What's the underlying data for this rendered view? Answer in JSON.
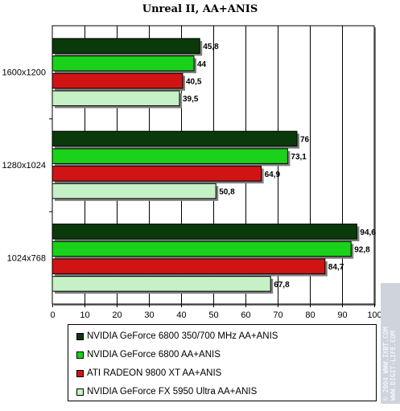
{
  "chart_data": {
    "type": "bar",
    "orientation": "horizontal",
    "title": "Unreal II, AA+ANIS",
    "categories": [
      "1600x1200",
      "1280x1024",
      "1024x768"
    ],
    "series": [
      {
        "name": "NVIDIA GeForce 6800 350/700 MHz AA+ANIS",
        "values": [
          45.8,
          76,
          94.6
        ],
        "labels": [
          "45,8",
          "76",
          "94,6"
        ],
        "color": "#0a3a0a"
      },
      {
        "name": "NVIDIA GeForce 6800 AA+ANIS",
        "values": [
          44,
          73.1,
          92.8
        ],
        "labels": [
          "44",
          "73,1",
          "92,8"
        ],
        "color": "#19d219"
      },
      {
        "name": "ATI RADEON 9800 XT AA+ANIS",
        "values": [
          40.5,
          64.9,
          84.7
        ],
        "labels": [
          "40,5",
          "64,9",
          "84,7"
        ],
        "color": "#d01414"
      },
      {
        "name": "NVIDIA GeForce FX 5950 Ultra AA+ANIS",
        "values": [
          39.5,
          50.8,
          67.8
        ],
        "labels": [
          "39,5",
          "50,8",
          "67,8"
        ],
        "color": "#c6f0c6"
      }
    ],
    "xlim": [
      0,
      100
    ],
    "xticks": [
      "0",
      "10",
      "20",
      "30",
      "40",
      "50",
      "60",
      "70",
      "80",
      "90",
      "100"
    ],
    "grid": true,
    "legend_position": "bottom"
  },
  "watermark": {
    "lines": [
      "© 2004 WWW.IXBT.COM",
      "WWW.DIGIT-LIFE.COM"
    ]
  }
}
